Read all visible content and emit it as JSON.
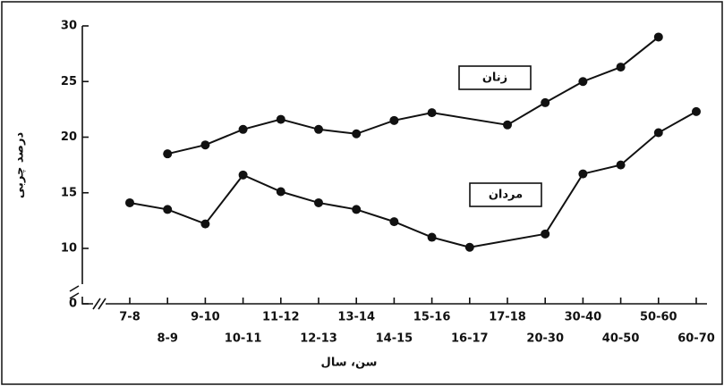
{
  "chart_data": {
    "type": "line",
    "xlabel": "سن، سال",
    "ylabel": "درصد چربی",
    "categories": [
      "7-8",
      "8-9",
      "9-10",
      "10-11",
      "11-12",
      "12-13",
      "13-14",
      "14-15",
      "15-16",
      "16-17",
      "17-18",
      "20-30",
      "30-40",
      "40-50",
      "50-60",
      "60-70"
    ],
    "series": [
      {
        "name": "زنان",
        "color": "#111111",
        "values": [
          null,
          18.5,
          19.3,
          20.7,
          21.6,
          20.7,
          20.3,
          21.5,
          22.2,
          null,
          21.1,
          23.1,
          25.0,
          26.3,
          29.0,
          null
        ]
      },
      {
        "name": "مردان",
        "color": "#111111",
        "values": [
          14.1,
          13.5,
          12.2,
          16.6,
          15.1,
          14.1,
          13.5,
          12.4,
          11.0,
          10.1,
          null,
          11.3,
          16.7,
          17.5,
          20.4,
          22.3
        ]
      }
    ],
    "ylim": [
      0,
      30
    ],
    "yticks": [
      0,
      10,
      15,
      20,
      25,
      30
    ]
  }
}
